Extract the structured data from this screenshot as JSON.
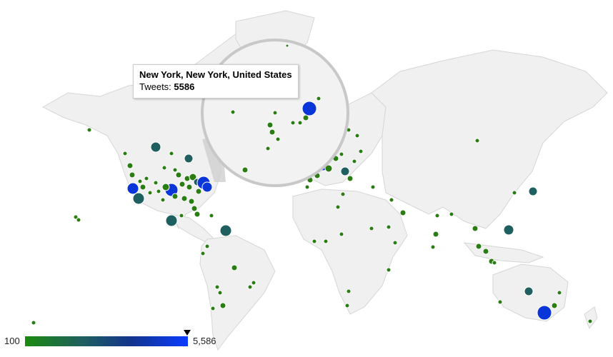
{
  "tooltip": {
    "title": "New York, New York, United States",
    "label": "Tweets:",
    "value": "5586"
  },
  "legend": {
    "min_label": "100",
    "max_label": "5,586",
    "min_value": 100,
    "max_value": 5586,
    "marker_value": 5586,
    "colors": [
      "#1a8a0f",
      "#1f5f5f",
      "#0a3cff"
    ]
  },
  "colors": {
    "land": "#f0f0f0",
    "land_border": "#d9d9d9",
    "low": "#2a7d13",
    "mid": "#1f5f5f",
    "high": "#0a35d8"
  }
}
